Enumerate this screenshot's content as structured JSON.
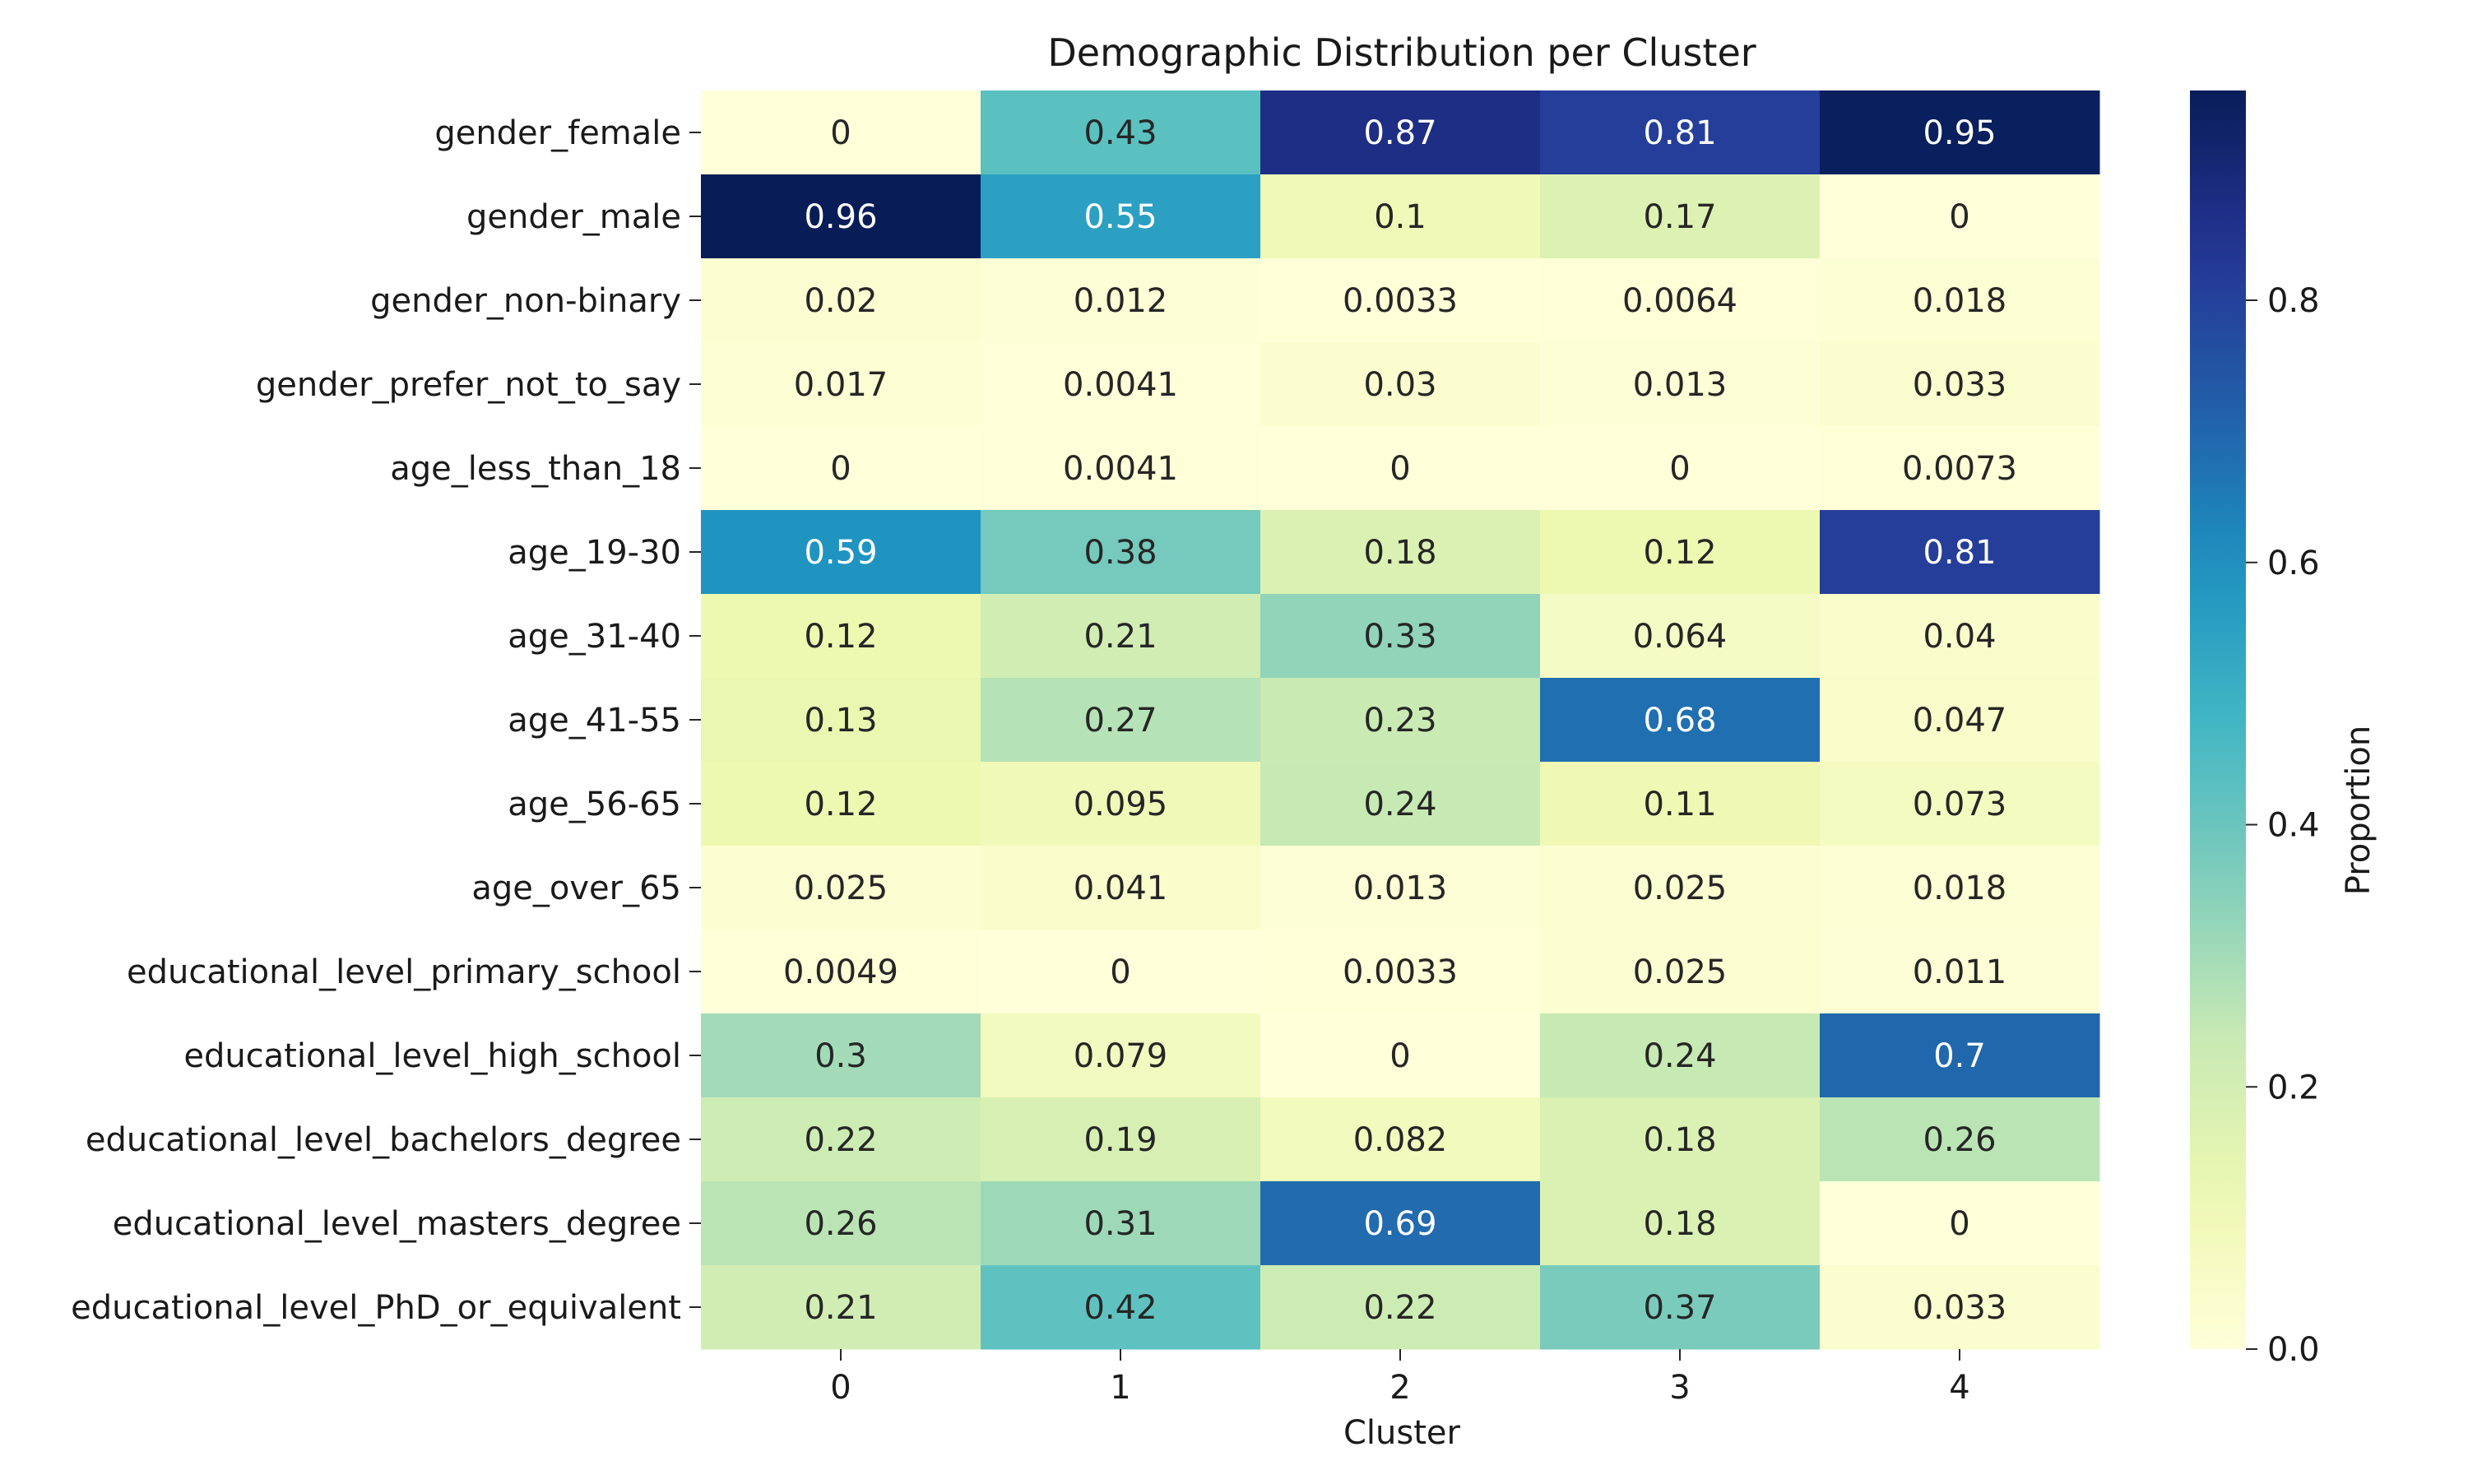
{
  "chart_data": {
    "type": "heatmap",
    "title": "Demographic Distribution per Cluster",
    "xlabel": "Cluster",
    "ylabel": "",
    "colorbar_label": "Proportion",
    "colormap": "YlGnBu",
    "vmin": 0.0,
    "vmax": 0.96,
    "colorbar_ticks": [
      "0.0",
      "0.2",
      "0.4",
      "0.6",
      "0.8"
    ],
    "colorbar_tick_values": [
      0.0,
      0.2,
      0.4,
      0.6,
      0.8
    ],
    "x_categories": [
      "0",
      "1",
      "2",
      "3",
      "4"
    ],
    "y_categories": [
      "gender_female",
      "gender_male",
      "gender_non-binary",
      "gender_prefer_not_to_say",
      "age_less_than_18",
      "age_19-30",
      "age_31-40",
      "age_41-55",
      "age_56-65",
      "age_over_65",
      "educational_level_primary_school",
      "educational_level_high_school",
      "educational_level_bachelors_degree",
      "educational_level_masters_degree",
      "educational_level_PhD_or_equivalent"
    ],
    "values": [
      [
        0,
        0.43,
        0.87,
        0.81,
        0.95
      ],
      [
        0.96,
        0.55,
        0.1,
        0.17,
        0
      ],
      [
        0.02,
        0.012,
        0.0033,
        0.0064,
        0.018
      ],
      [
        0.017,
        0.0041,
        0.03,
        0.013,
        0.033
      ],
      [
        0,
        0.0041,
        0,
        0,
        0.0073
      ],
      [
        0.59,
        0.38,
        0.18,
        0.12,
        0.81
      ],
      [
        0.12,
        0.21,
        0.33,
        0.064,
        0.04
      ],
      [
        0.13,
        0.27,
        0.23,
        0.68,
        0.047
      ],
      [
        0.12,
        0.095,
        0.24,
        0.11,
        0.073
      ],
      [
        0.025,
        0.041,
        0.013,
        0.025,
        0.018
      ],
      [
        0.0049,
        0,
        0.0033,
        0.025,
        0.011
      ],
      [
        0.3,
        0.079,
        0,
        0.24,
        0.7
      ],
      [
        0.22,
        0.19,
        0.082,
        0.18,
        0.26
      ],
      [
        0.26,
        0.31,
        0.69,
        0.18,
        0
      ],
      [
        0.21,
        0.42,
        0.22,
        0.37,
        0.033
      ]
    ],
    "value_labels": [
      [
        "0",
        "0.43",
        "0.87",
        "0.81",
        "0.95"
      ],
      [
        "0.96",
        "0.55",
        "0.1",
        "0.17",
        "0"
      ],
      [
        "0.02",
        "0.012",
        "0.0033",
        "0.0064",
        "0.018"
      ],
      [
        "0.017",
        "0.0041",
        "0.03",
        "0.013",
        "0.033"
      ],
      [
        "0",
        "0.0041",
        "0",
        "0",
        "0.0073"
      ],
      [
        "0.59",
        "0.38",
        "0.18",
        "0.12",
        "0.81"
      ],
      [
        "0.12",
        "0.21",
        "0.33",
        "0.064",
        "0.04"
      ],
      [
        "0.13",
        "0.27",
        "0.23",
        "0.68",
        "0.047"
      ],
      [
        "0.12",
        "0.095",
        "0.24",
        "0.11",
        "0.073"
      ],
      [
        "0.025",
        "0.041",
        "0.013",
        "0.025",
        "0.018"
      ],
      [
        "0.0049",
        "0",
        "0.0033",
        "0.025",
        "0.011"
      ],
      [
        "0.3",
        "0.079",
        "0",
        "0.24",
        "0.7"
      ],
      [
        "0.22",
        "0.19",
        "0.082",
        "0.18",
        "0.26"
      ],
      [
        "0.26",
        "0.31",
        "0.69",
        "0.18",
        "0"
      ],
      [
        "0.21",
        "0.42",
        "0.22",
        "0.37",
        "0.033"
      ]
    ]
  }
}
